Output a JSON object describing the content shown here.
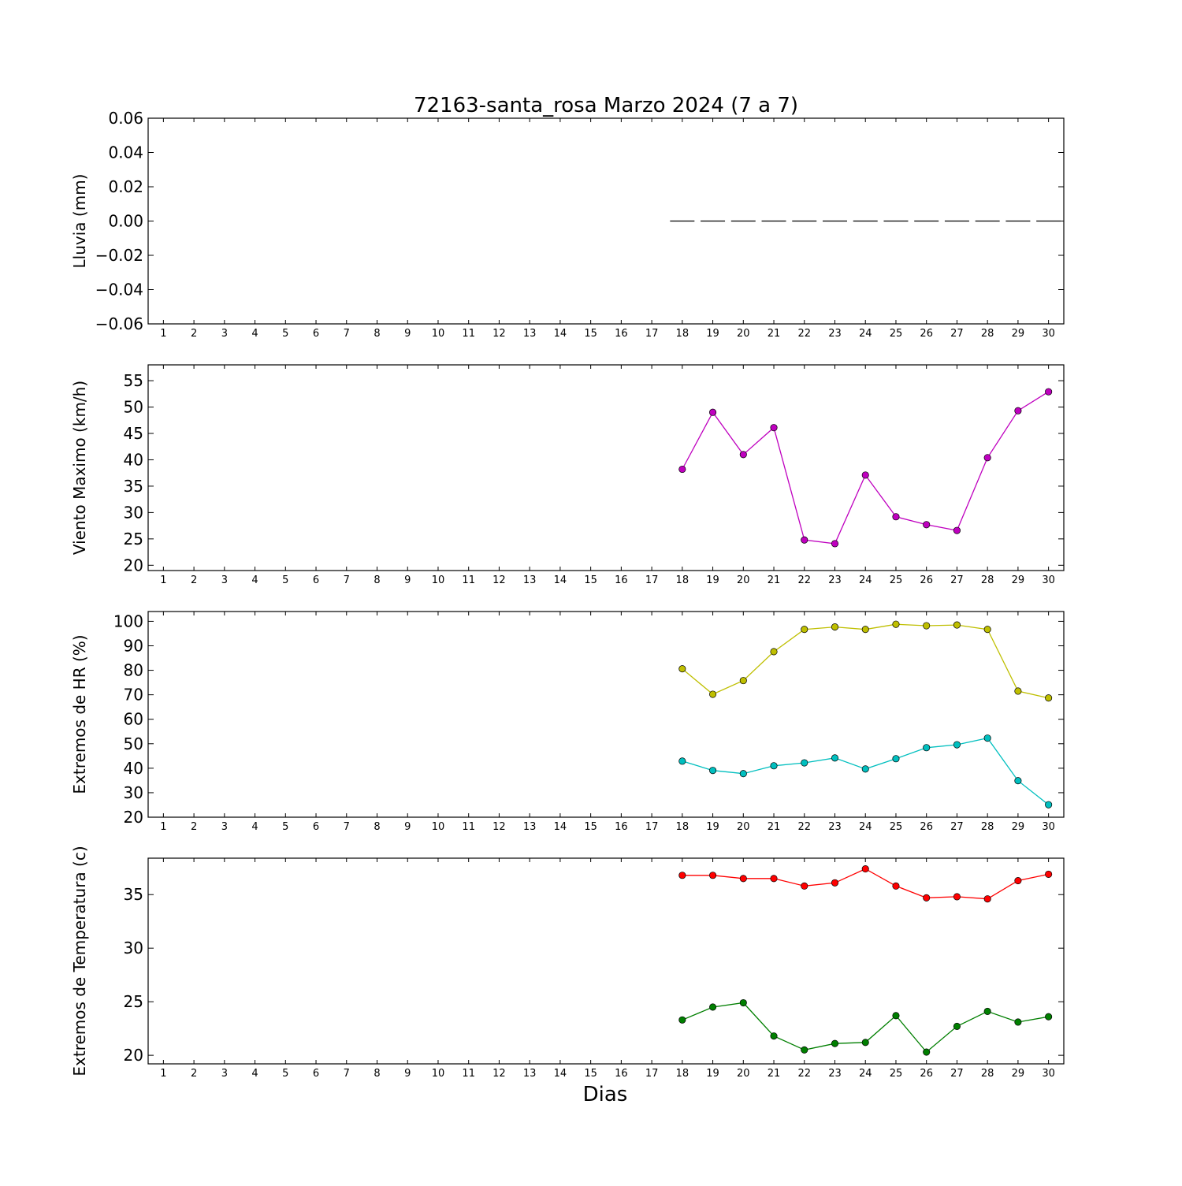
{
  "title": "72163-santa_rosa Marzo 2024  (7 a 7)",
  "xlabel": "Dias",
  "chart_data": [
    {
      "type": "line",
      "ylabel": "Lluvia (mm)",
      "ylim": [
        -0.06,
        0.06
      ],
      "yticks": [
        0.06,
        0.04,
        0.02,
        0.0,
        -0.02,
        -0.04,
        -0.06
      ],
      "ytick_labels": [
        "0.06",
        "0.04",
        "0.02",
        "0.00",
        "−0.02",
        "−0.04",
        "−0.06"
      ],
      "xlim": [
        0.5,
        30.5
      ],
      "xticks": [
        1,
        2,
        3,
        4,
        5,
        6,
        7,
        8,
        9,
        10,
        11,
        12,
        13,
        14,
        15,
        16,
        17,
        18,
        19,
        20,
        21,
        22,
        23,
        24,
        25,
        26,
        27,
        28,
        29,
        30
      ],
      "grid": false,
      "series": [
        {
          "style": "bars",
          "color": "#000000",
          "x": [
            18,
            19,
            20,
            21,
            22,
            23,
            24,
            25,
            26,
            27,
            28,
            29,
            30
          ],
          "values": [
            0,
            0,
            0,
            0,
            0,
            0,
            0,
            0,
            0,
            0,
            0,
            0,
            0
          ]
        }
      ]
    },
    {
      "type": "line",
      "ylabel": "Viento Maximo (km/h)",
      "ylim": [
        19,
        58
      ],
      "yticks": [
        20,
        25,
        30,
        35,
        40,
        45,
        50,
        55
      ],
      "ytick_labels": [
        "20",
        "25",
        "30",
        "35",
        "40",
        "45",
        "50",
        "55"
      ],
      "xlim": [
        0.5,
        30.5
      ],
      "xticks": [
        1,
        2,
        3,
        4,
        5,
        6,
        7,
        8,
        9,
        10,
        11,
        12,
        13,
        14,
        15,
        16,
        17,
        18,
        19,
        20,
        21,
        22,
        23,
        24,
        25,
        26,
        27,
        28,
        29,
        30
      ],
      "grid": false,
      "series": [
        {
          "style": "line-markers",
          "color": "#bf00bf",
          "x": [
            18,
            19,
            20,
            21,
            22,
            23,
            24,
            25,
            26,
            27,
            28,
            29,
            30
          ],
          "values": [
            38.2,
            49.0,
            41.0,
            46.1,
            24.8,
            24.1,
            37.1,
            29.2,
            27.7,
            26.6,
            40.4,
            49.3,
            52.9
          ]
        }
      ]
    },
    {
      "type": "line",
      "ylabel": "Extremos de HR (%)",
      "ylim": [
        20,
        104
      ],
      "yticks": [
        20,
        30,
        40,
        50,
        60,
        70,
        80,
        90,
        100
      ],
      "ytick_labels": [
        "20",
        "30",
        "40",
        "50",
        "60",
        "70",
        "80",
        "90",
        "100"
      ],
      "xlim": [
        0.5,
        30.5
      ],
      "xticks": [
        1,
        2,
        3,
        4,
        5,
        6,
        7,
        8,
        9,
        10,
        11,
        12,
        13,
        14,
        15,
        16,
        17,
        18,
        19,
        20,
        21,
        22,
        23,
        24,
        25,
        26,
        27,
        28,
        29,
        30
      ],
      "grid": false,
      "series": [
        {
          "style": "line-markers",
          "color": "#bfbf00",
          "x": [
            18,
            19,
            20,
            21,
            22,
            23,
            24,
            25,
            26,
            27,
            28,
            29,
            30
          ],
          "values": [
            80.6,
            70.2,
            75.8,
            87.6,
            96.7,
            97.7,
            96.7,
            98.8,
            98.2,
            98.5,
            96.7,
            71.5,
            68.7
          ]
        },
        {
          "style": "line-markers",
          "color": "#00bfbf",
          "x": [
            18,
            19,
            20,
            21,
            22,
            23,
            24,
            25,
            26,
            27,
            28,
            29,
            30
          ],
          "values": [
            42.9,
            39.1,
            37.8,
            41.0,
            42.2,
            44.2,
            39.7,
            43.9,
            48.4,
            49.6,
            52.3,
            34.9,
            25.1
          ]
        }
      ]
    },
    {
      "type": "line",
      "ylabel": "Extremos de Temperatura (c)",
      "ylim": [
        19.2,
        38.4
      ],
      "yticks": [
        20,
        25,
        30,
        35
      ],
      "ytick_labels": [
        "20",
        "25",
        "30",
        "35"
      ],
      "xlim": [
        0.5,
        30.5
      ],
      "xticks": [
        1,
        2,
        3,
        4,
        5,
        6,
        7,
        8,
        9,
        10,
        11,
        12,
        13,
        14,
        15,
        16,
        17,
        18,
        19,
        20,
        21,
        22,
        23,
        24,
        25,
        26,
        27,
        28,
        29,
        30
      ],
      "grid": false,
      "series": [
        {
          "style": "line-markers",
          "color": "#ff0000",
          "x": [
            18,
            19,
            20,
            21,
            22,
            23,
            24,
            25,
            26,
            27,
            28,
            29,
            30
          ],
          "values": [
            36.8,
            36.8,
            36.5,
            36.5,
            35.8,
            36.1,
            37.4,
            35.8,
            34.7,
            34.8,
            34.6,
            36.3,
            36.9
          ]
        },
        {
          "style": "line-markers",
          "color": "#007f00",
          "x": [
            18,
            19,
            20,
            21,
            22,
            23,
            24,
            25,
            26,
            27,
            28,
            29,
            30
          ],
          "values": [
            23.3,
            24.5,
            24.9,
            21.8,
            20.5,
            21.1,
            21.2,
            23.7,
            20.3,
            22.7,
            24.1,
            23.1,
            23.6
          ]
        }
      ]
    }
  ]
}
